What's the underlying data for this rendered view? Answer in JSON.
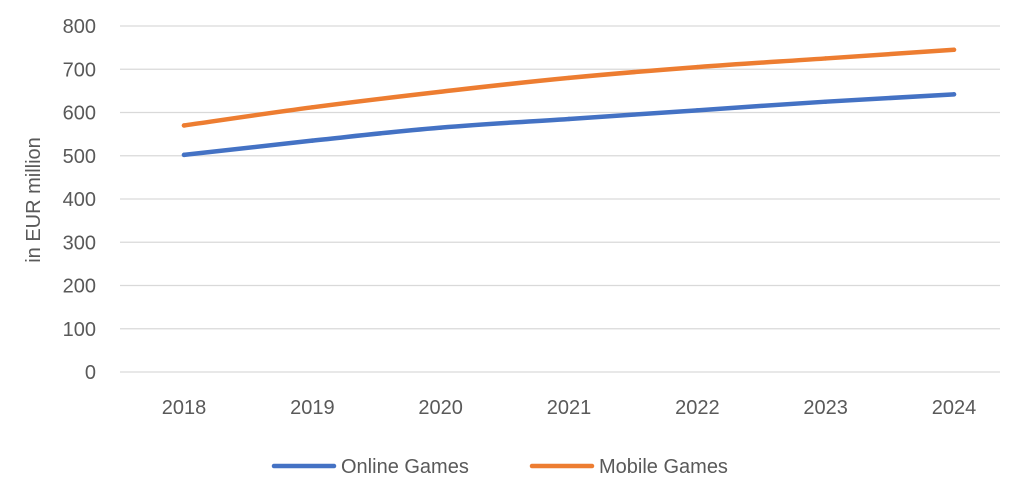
{
  "chart_data": {
    "type": "line",
    "title": "",
    "xlabel": "",
    "ylabel": "in EUR million",
    "categories": [
      "2018",
      "2019",
      "2020",
      "2021",
      "2022",
      "2023",
      "2024"
    ],
    "series": [
      {
        "name": "Online Games",
        "color": "#4472C4",
        "values": [
          502,
          535,
          565,
          585,
          605,
          625,
          642
        ]
      },
      {
        "name": "Mobile Games",
        "color": "#ED7D31",
        "values": [
          570,
          612,
          648,
          680,
          705,
          725,
          745
        ]
      }
    ],
    "ylim": [
      0,
      800
    ],
    "yticks": [
      "0",
      "100",
      "200",
      "300",
      "400",
      "500",
      "600",
      "700",
      "800"
    ],
    "grid": true,
    "legend_position": "bottom"
  }
}
